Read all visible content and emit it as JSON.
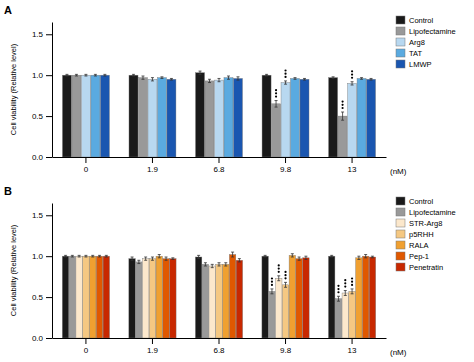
{
  "chart_data": [
    {
      "type": "bar",
      "title": "A",
      "categories": [
        "0",
        "1.9",
        "6.8",
        "9.8",
        "13"
      ],
      "xlabel": "(nM)",
      "ylabel": "Cell viability (Relative level)",
      "ylim": [
        0,
        1.65
      ],
      "yticks": [
        {
          "value": 0,
          "label": "0.0"
        },
        0.5,
        {
          "value": 1,
          "label": "1.0"
        },
        1.5
      ],
      "grid": false,
      "legend": "right",
      "series": [
        {
          "name": "Control",
          "color": "#1a1a1a",
          "values": [
            1.0,
            1.0,
            1.03,
            1.0,
            0.97
          ],
          "errors": [
            0.01,
            0.01,
            0.02,
            0.01,
            0.01
          ]
        },
        {
          "name": "Lipofectamine",
          "color": "#999999",
          "values": [
            1.0,
            0.97,
            0.93,
            0.65,
            0.5
          ],
          "errors": [
            0.01,
            0.02,
            0.02,
            0.04,
            0.05
          ],
          "significance_dots": [
            0,
            0,
            0,
            3,
            3
          ]
        },
        {
          "name": "Arg8",
          "color": "#b8d8f0",
          "values": [
            1.0,
            0.95,
            0.94,
            0.91,
            0.9
          ],
          "errors": [
            0.01,
            0.02,
            0.02,
            0.02,
            0.02
          ],
          "significance_dots": [
            0,
            0,
            0,
            3,
            3
          ]
        },
        {
          "name": "TAT",
          "color": "#5aaae0",
          "values": [
            1.0,
            0.97,
            0.97,
            0.96,
            0.96
          ],
          "errors": [
            0.01,
            0.01,
            0.02,
            0.01,
            0.01
          ]
        },
        {
          "name": "LMWP",
          "color": "#1a56b0",
          "values": [
            1.0,
            0.95,
            0.96,
            0.95,
            0.95
          ],
          "errors": [
            0.01,
            0.01,
            0.02,
            0.01,
            0.01
          ]
        }
      ]
    },
    {
      "type": "bar",
      "title": "B",
      "categories": [
        "0",
        "1.9",
        "6.8",
        "9.8",
        "13"
      ],
      "xlabel": "(nM)",
      "ylabel": "Cell viability (Relative level)",
      "ylim": [
        0,
        1.65
      ],
      "yticks": [
        {
          "value": 0,
          "label": "0.0"
        },
        0.5,
        {
          "value": 1,
          "label": "1.0"
        },
        1.5
      ],
      "grid": false,
      "legend": "right",
      "series": [
        {
          "name": "Control",
          "color": "#1a1a1a",
          "values": [
            1.0,
            0.97,
            0.99,
            1.0,
            1.0
          ],
          "errors": [
            0.01,
            0.02,
            0.02,
            0.01,
            0.01
          ]
        },
        {
          "name": "Lipofectamine",
          "color": "#999999",
          "values": [
            1.0,
            0.93,
            0.9,
            0.57,
            0.48
          ],
          "errors": [
            0.01,
            0.02,
            0.02,
            0.03,
            0.03
          ],
          "significance_dots": [
            0,
            0,
            0,
            3,
            3
          ]
        },
        {
          "name": "STR-Arg8",
          "color": "#fce8cc",
          "values": [
            1.0,
            0.97,
            0.88,
            0.73,
            0.55
          ],
          "errors": [
            0.01,
            0.02,
            0.02,
            0.03,
            0.03
          ],
          "significance_dots": [
            0,
            0,
            0,
            3,
            3
          ]
        },
        {
          "name": "p5RHH",
          "color": "#f5c882",
          "values": [
            1.0,
            0.97,
            0.9,
            0.65,
            0.57
          ],
          "errors": [
            0.01,
            0.02,
            0.02,
            0.03,
            0.03
          ],
          "significance_dots": [
            0,
            0,
            0,
            3,
            3
          ]
        },
        {
          "name": "RALA",
          "color": "#f0a030",
          "values": [
            1.0,
            1.0,
            0.9,
            1.01,
            0.98
          ],
          "errors": [
            0.01,
            0.02,
            0.02,
            0.02,
            0.02
          ]
        },
        {
          "name": "Pep-1",
          "color": "#e05800",
          "values": [
            1.0,
            0.97,
            1.02,
            0.97,
            1.0
          ],
          "errors": [
            0.01,
            0.02,
            0.03,
            0.02,
            0.02
          ]
        },
        {
          "name": "Penetratin",
          "color": "#c82800",
          "values": [
            1.0,
            0.97,
            0.95,
            0.98,
            0.99
          ],
          "errors": [
            0.01,
            0.01,
            0.02,
            0.02,
            0.01
          ]
        }
      ]
    }
  ]
}
